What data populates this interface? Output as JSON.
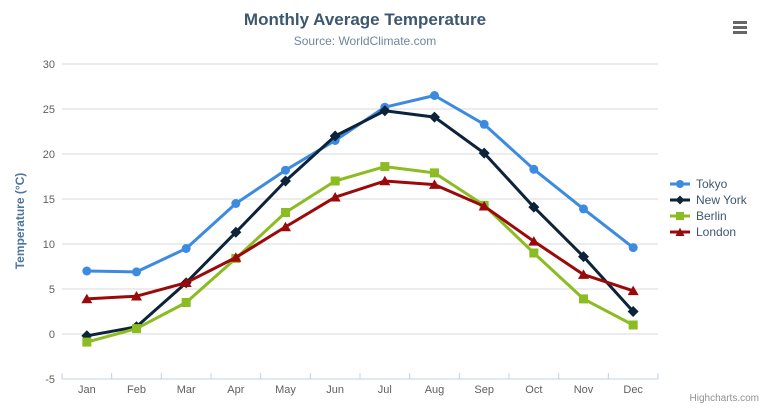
{
  "title": "Monthly Average Temperature",
  "subtitle": "Source: WorldClimate.com",
  "chart_data": {
    "type": "line",
    "title": "Monthly Average Temperature",
    "subtitle": "Source: WorldClimate.com",
    "xlabel": "",
    "ylabel": "Temperature (°C)",
    "categories": [
      "Jan",
      "Feb",
      "Mar",
      "Apr",
      "May",
      "Jun",
      "Jul",
      "Aug",
      "Sep",
      "Oct",
      "Nov",
      "Dec"
    ],
    "ylim": [
      -5,
      30
    ],
    "yticks": [
      -5,
      0,
      5,
      10,
      15,
      20,
      25,
      30
    ],
    "grid": true,
    "legend_position": "right",
    "series": [
      {
        "name": "Tokyo",
        "color": "#3d8be0",
        "marker": "circle",
        "values": [
          7.0,
          6.9,
          9.5,
          14.5,
          18.2,
          21.5,
          25.2,
          26.5,
          23.3,
          18.3,
          13.9,
          9.6
        ]
      },
      {
        "name": "New York",
        "color": "#0d233a",
        "marker": "diamond",
        "values": [
          -0.2,
          0.8,
          5.7,
          11.3,
          17.0,
          22.0,
          24.8,
          24.1,
          20.1,
          14.1,
          8.6,
          2.5
        ]
      },
      {
        "name": "Berlin",
        "color": "#8bbc21",
        "marker": "square",
        "values": [
          -0.9,
          0.6,
          3.5,
          8.4,
          13.5,
          17.0,
          18.6,
          17.9,
          14.3,
          9.0,
          3.9,
          1.0
        ]
      },
      {
        "name": "London",
        "color": "#9a0a0a",
        "marker": "triangle",
        "values": [
          3.9,
          4.2,
          5.7,
          8.5,
          11.9,
          15.2,
          17.0,
          16.6,
          14.2,
          10.3,
          6.6,
          4.8
        ]
      }
    ]
  },
  "credits": {
    "text": "Highcharts.com"
  },
  "export_menu": {
    "icon": "hamburger-menu-icon"
  },
  "colors": {
    "background": "#ffffff",
    "grid_line": "#d8d8d8",
    "axis_line": "#c0d0e0",
    "tick_label": "#606060",
    "title": "#3e576f",
    "subtitle": "#6d869f",
    "axis_title": "#4d759e",
    "legend_text": "#3e576f",
    "credits_text": "#909090",
    "menu_icon": "#666666"
  }
}
